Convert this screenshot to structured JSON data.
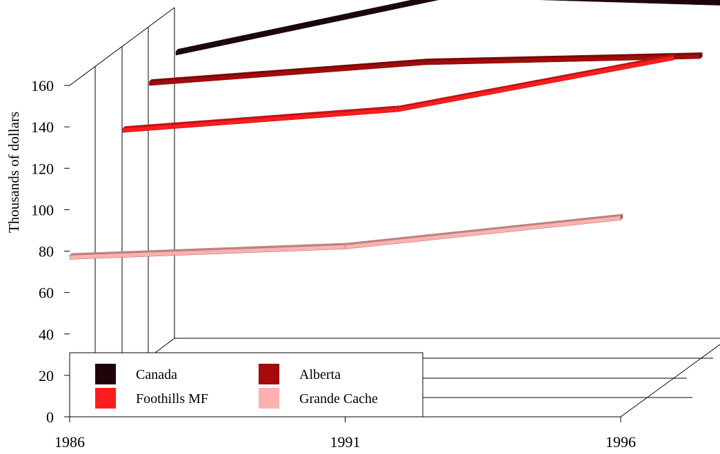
{
  "chart_data": {
    "type": "line",
    "style": "3d-ribbon",
    "ylabel": "Thousands of dollars",
    "xlabel": "",
    "x": [
      "1986",
      "1991",
      "1996"
    ],
    "ylim": [
      0,
      160
    ],
    "yticks": [
      "0",
      "20",
      "40",
      "60",
      "80",
      "100",
      "120",
      "140",
      "160"
    ],
    "xticks": [
      "1986",
      "1991",
      "1996"
    ],
    "grid": false,
    "legend_position": "bottom-left",
    "series": [
      {
        "name": "Canada",
        "values": [
          142,
          170,
          166
        ],
        "color": "#1e0508"
      },
      {
        "name": "Alberta",
        "values": [
          136,
          146,
          149
        ],
        "color": "#a50b0b"
      },
      {
        "name": "Foothills MF",
        "values": [
          122,
          132,
          157
        ],
        "color": "#ff1c1c"
      },
      {
        "name": "Grande Cache",
        "values": [
          78,
          83,
          97
        ],
        "color": "#ffb0b0"
      }
    ]
  }
}
